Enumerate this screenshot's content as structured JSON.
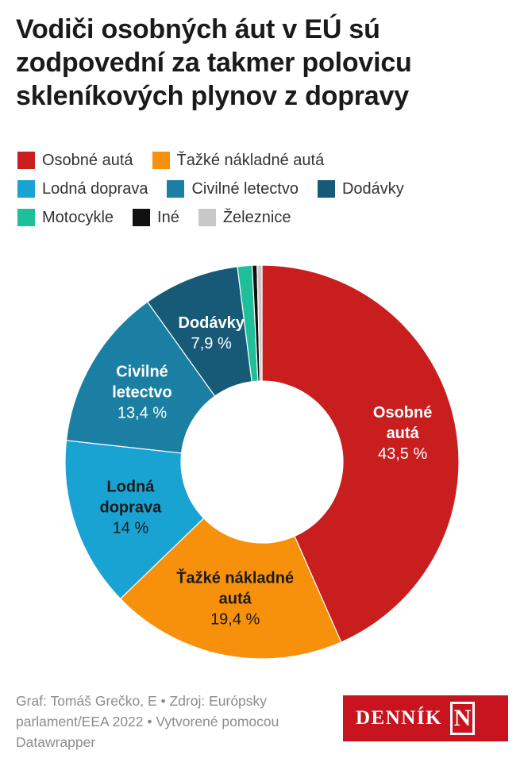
{
  "title": "Vodiči osobných áut v EÚ sú zodpovední za takmer polovicu skleníkových plynov z dopravy",
  "footer": {
    "text": "Graf: Tomáš Grečko, E • Zdroj: Európsky parlament/EEA 2022 • Vytvorené pomocou Datawrapper"
  },
  "logo": {
    "text": "DENNÍK",
    "letter": "N"
  },
  "chart_data": {
    "type": "pie",
    "variant": "donut",
    "title": "Vodiči osobných áut v EÚ sú zodpovední za takmer polovicu skleníkových plynov z dopravy",
    "legend_position": "top",
    "slices": [
      {
        "label": "Osobné autá",
        "value": 43.5,
        "display": "43,5 %",
        "color": "#c81e1e",
        "chart_label": [
          "Osobné",
          "autá"
        ],
        "label_color": "#ffffff"
      },
      {
        "label": "Ťažké nákladné autá",
        "value": 19.4,
        "display": "19,4 %",
        "color": "#f7900a",
        "chart_label": [
          "Ťažké nákladné",
          "autá"
        ],
        "label_color": "#1a1a1a"
      },
      {
        "label": "Lodná doprava",
        "value": 14,
        "display": "14 %",
        "color": "#18a3d2",
        "chart_label": [
          "Lodná",
          "doprava"
        ],
        "label_color": "#1a1a1a"
      },
      {
        "label": "Civilné letectvo",
        "value": 13.4,
        "display": "13,4 %",
        "color": "#1b7fa3",
        "chart_label": [
          "Civilné",
          "letectvo"
        ],
        "label_color": "#ffffff"
      },
      {
        "label": "Dodávky",
        "value": 7.9,
        "display": "7,9 %",
        "color": "#175a78",
        "chart_label": [
          "Dodávky"
        ],
        "label_color": "#ffffff"
      },
      {
        "label": "Motocykle",
        "value": 1.2,
        "display": "",
        "color": "#1ebf9a",
        "chart_label": [],
        "label_color": "#ffffff"
      },
      {
        "label": "Iné",
        "value": 0.4,
        "display": "",
        "color": "#111111",
        "chart_label": [],
        "label_color": "#ffffff"
      },
      {
        "label": "Železnice",
        "value": 0.4,
        "display": "",
        "color": "#c8c8c8",
        "chart_label": [],
        "label_color": "#ffffff"
      }
    ]
  },
  "legend_rows": [
    [
      {
        "label": "Osobné autá",
        "color": "#c81e1e"
      },
      {
        "label": "Ťažké nákladné autá",
        "color": "#f7900a"
      }
    ],
    [
      {
        "label": "Lodná doprava",
        "color": "#18a3d2"
      },
      {
        "label": "Civilné letectvo",
        "color": "#1b7fa3"
      },
      {
        "label": "Dodávky",
        "color": "#175a78"
      }
    ],
    [
      {
        "label": "Motocykle",
        "color": "#1ebf9a"
      },
      {
        "label": "Iné",
        "color": "#111111"
      },
      {
        "label": "Železnice",
        "color": "#c8c8c8"
      }
    ]
  ]
}
